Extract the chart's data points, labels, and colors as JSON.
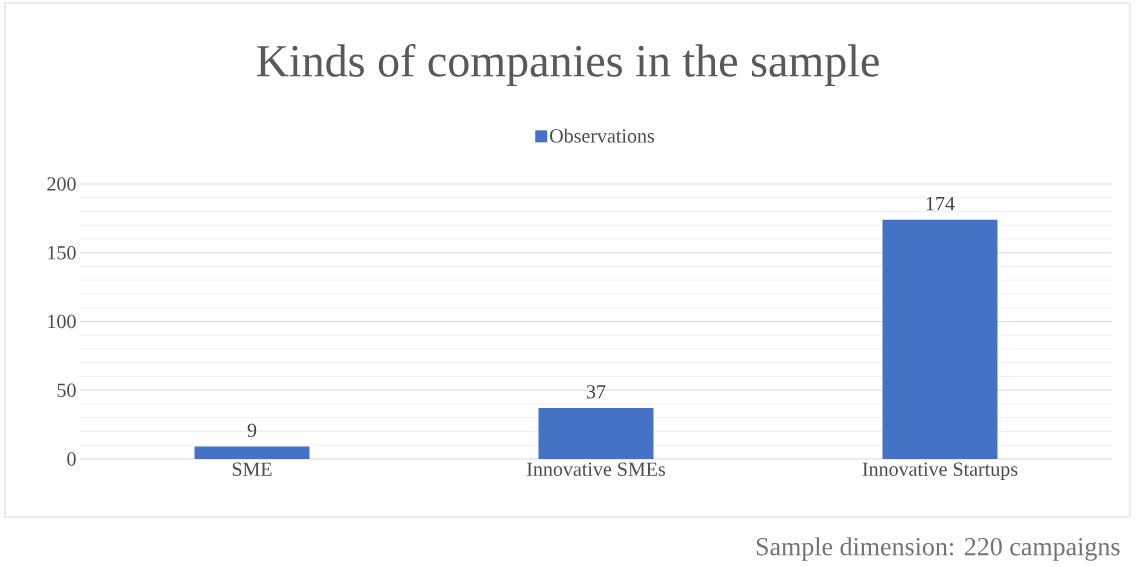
{
  "chart_data": {
    "type": "bar",
    "title": "Kinds of companies in the sample",
    "categories": [
      "SME",
      "Innovative SMEs",
      "Innovative Startups"
    ],
    "series": [
      {
        "name": "Observations",
        "color": "#4472c4",
        "values": [
          9,
          37,
          174
        ]
      }
    ],
    "ylim": [
      0,
      200
    ],
    "yticks": [
      0,
      50,
      100,
      150,
      200
    ],
    "grid": "y",
    "legend": "top",
    "data_labels": true,
    "annotations": [
      "Sample dimension: 220 campaigns"
    ]
  }
}
